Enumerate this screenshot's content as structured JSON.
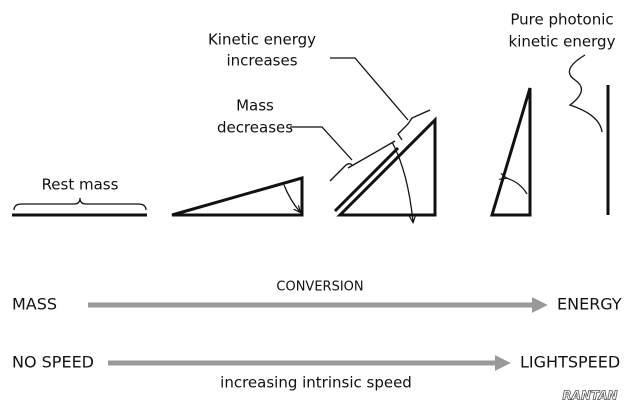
{
  "labels": {
    "kinetic_increases": [
      "Kinetic energy",
      "increases"
    ],
    "photonic": [
      "Pure photonic",
      "kinetic energy"
    ],
    "mass_decreases": [
      "Mass",
      "decreases"
    ],
    "rest_mass": "Rest mass"
  },
  "conversion_arrow": {
    "label": "CONVERSION",
    "start": "MASS",
    "end": "ENERGY"
  },
  "speed_arrow": {
    "start": "NO SPEED",
    "end": "LIGHTSPEED",
    "label": "increasing intrinsic speed"
  },
  "logo": "RANTAN"
}
